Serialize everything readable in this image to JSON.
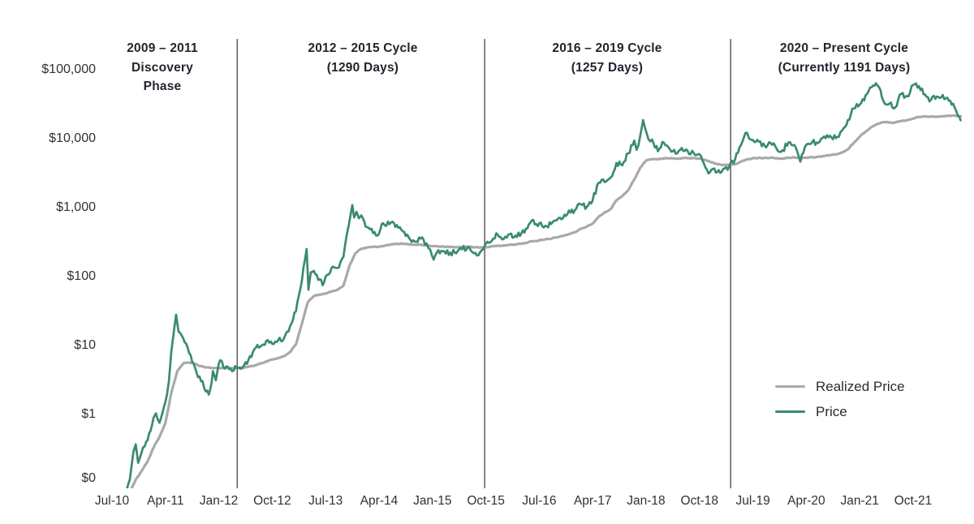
{
  "colors": {
    "price_green": "#3a8a74",
    "realized_gray": "#a9a9a9",
    "divider": "#55524a",
    "text_dark": "#24232e",
    "axis_text": "#31303b"
  },
  "legend": {
    "items": [
      "Realized Price",
      "Price"
    ]
  },
  "chart_data": {
    "type": "line",
    "yscale": "log",
    "grid": false,
    "legend_position": "right-middle",
    "x_unit": "months since Jul-2010",
    "x_ticks": [
      "Jul-10",
      "Apr-11",
      "Jan-12",
      "Oct-12",
      "Jul-13",
      "Apr-14",
      "Jan-15",
      "Oct-15",
      "Jul-16",
      "Apr-17",
      "Jan-18",
      "Oct-18",
      "Jul-19",
      "Apr-20",
      "Jan-21",
      "Oct-21"
    ],
    "y_ticks": [
      {
        "label": "$100,000",
        "value": 100000
      },
      {
        "label": "$10,000",
        "value": 10000
      },
      {
        "label": "$1,000",
        "value": 1000
      },
      {
        "label": "$100",
        "value": 100
      },
      {
        "label": "$10",
        "value": 10
      },
      {
        "label": "$1",
        "value": 1
      },
      {
        "label": "$0",
        "value": 0
      }
    ],
    "cycles": [
      {
        "lines": [
          "2009 – 2011",
          "Discovery",
          "Phase"
        ],
        "divider_month": 21.1
      },
      {
        "lines": [
          "2012 – 2015 Cycle",
          "(1290 Days)"
        ],
        "divider_month": 62.8
      },
      {
        "lines": [
          "2016 – 2019 Cycle",
          "(1257 Days)"
        ],
        "divider_month": 104.25
      },
      {
        "lines": [
          "2020 – Present Cycle",
          "(Currently 1191 Days)"
        ]
      }
    ],
    "series": [
      {
        "name": "Realized Price",
        "color": "#a9a9a9",
        "points": [
          [
            0.5,
            0.04
          ],
          [
            2,
            0.05
          ],
          [
            3,
            0.08
          ],
          [
            4,
            0.12
          ],
          [
            5,
            0.16
          ],
          [
            6,
            0.22
          ],
          [
            7,
            0.35
          ],
          [
            8,
            0.5
          ],
          [
            9,
            0.8
          ],
          [
            10,
            2.2
          ],
          [
            11,
            4.5
          ],
          [
            12,
            5.8
          ],
          [
            13,
            6.0
          ],
          [
            14,
            5.7
          ],
          [
            15,
            5.3
          ],
          [
            16,
            5.1
          ],
          [
            17,
            5.0
          ],
          [
            18,
            5.0
          ],
          [
            20,
            4.95
          ],
          [
            22,
            5.0
          ],
          [
            24,
            5.4
          ],
          [
            26,
            6.2
          ],
          [
            28,
            7.0
          ],
          [
            29,
            7.4
          ],
          [
            30,
            8.5
          ],
          [
            31,
            11
          ],
          [
            32,
            22
          ],
          [
            33,
            45
          ],
          [
            34,
            55
          ],
          [
            35,
            58
          ],
          [
            36,
            60
          ],
          [
            37,
            64
          ],
          [
            38,
            68
          ],
          [
            39,
            78
          ],
          [
            40,
            150
          ],
          [
            41,
            230
          ],
          [
            42,
            268
          ],
          [
            43,
            280
          ],
          [
            44,
            285
          ],
          [
            45,
            287
          ],
          [
            46,
            297
          ],
          [
            47,
            310
          ],
          [
            48,
            315
          ],
          [
            49,
            315
          ],
          [
            50,
            311
          ],
          [
            51,
            307
          ],
          [
            52,
            305
          ],
          [
            53,
            300
          ],
          [
            54,
            291
          ],
          [
            56,
            286
          ],
          [
            58,
            282
          ],
          [
            60,
            285
          ],
          [
            62,
            278
          ],
          [
            63,
            280
          ],
          [
            65,
            295
          ],
          [
            67,
            305
          ],
          [
            69,
            315
          ],
          [
            71,
            345
          ],
          [
            73,
            365
          ],
          [
            75,
            390
          ],
          [
            77,
            435
          ],
          [
            78,
            465
          ],
          [
            79,
            520
          ],
          [
            80,
            560
          ],
          [
            81,
            620
          ],
          [
            82,
            780
          ],
          [
            83,
            900
          ],
          [
            84,
            1000
          ],
          [
            85,
            1350
          ],
          [
            86,
            1550
          ],
          [
            87,
            1900
          ],
          [
            88,
            2700
          ],
          [
            89,
            4000
          ],
          [
            90,
            5100
          ],
          [
            91,
            5350
          ],
          [
            92,
            5300
          ],
          [
            93,
            5450
          ],
          [
            94,
            5500
          ],
          [
            95,
            5450
          ],
          [
            96,
            5500
          ],
          [
            97,
            5500
          ],
          [
            98,
            5500
          ],
          [
            99,
            5450
          ],
          [
            100,
            5200
          ],
          [
            101,
            4800
          ],
          [
            102,
            4500
          ],
          [
            103,
            4400
          ],
          [
            104,
            4400
          ],
          [
            105,
            4500
          ],
          [
            106,
            4900
          ],
          [
            107,
            5300
          ],
          [
            108,
            5500
          ],
          [
            109,
            5600
          ],
          [
            110,
            5550
          ],
          [
            111,
            5600
          ],
          [
            112,
            5500
          ],
          [
            113,
            5450
          ],
          [
            114,
            5550
          ],
          [
            115,
            5650
          ],
          [
            116,
            5500
          ],
          [
            117,
            5550
          ],
          [
            118,
            5700
          ],
          [
            119,
            5750
          ],
          [
            120,
            5900
          ],
          [
            121,
            6100
          ],
          [
            122,
            6250
          ],
          [
            123,
            6600
          ],
          [
            124,
            7400
          ],
          [
            125,
            9200
          ],
          [
            126,
            11300
          ],
          [
            127,
            13300
          ],
          [
            128,
            15600
          ],
          [
            129,
            17300
          ],
          [
            130,
            18300
          ],
          [
            131,
            18100
          ],
          [
            132,
            18200
          ],
          [
            133,
            19000
          ],
          [
            134,
            19600
          ],
          [
            135,
            20800
          ],
          [
            136,
            21800
          ],
          [
            137,
            22300
          ],
          [
            138,
            22200
          ],
          [
            139,
            22100
          ],
          [
            140,
            22400
          ],
          [
            141,
            22800
          ],
          [
            142,
            22800
          ],
          [
            143,
            22300
          ]
        ]
      },
      {
        "name": "Price",
        "color": "#3a8a74",
        "points": [
          [
            0,
            0.06
          ],
          [
            1,
            0.065
          ],
          [
            2,
            0.062
          ],
          [
            3,
            0.12
          ],
          [
            3.6,
            0.3
          ],
          [
            4,
            0.39
          ],
          [
            4.4,
            0.21
          ],
          [
            5,
            0.3
          ],
          [
            6,
            0.45
          ],
          [
            7,
            0.95
          ],
          [
            7.4,
            1.1
          ],
          [
            8,
            0.8
          ],
          [
            9,
            1.6
          ],
          [
            9.6,
            3.3
          ],
          [
            10,
            8.7
          ],
          [
            10.8,
            29.6
          ],
          [
            11.2,
            17
          ],
          [
            11.6,
            15.5
          ],
          [
            12,
            13.5
          ],
          [
            13,
            8.2
          ],
          [
            14,
            5
          ],
          [
            15,
            3.2
          ],
          [
            16.3,
            2.05
          ],
          [
            16.8,
            3.1
          ],
          [
            17,
            4.5
          ],
          [
            17.5,
            3.3
          ],
          [
            18,
            5.8
          ],
          [
            18.5,
            6.3
          ],
          [
            19,
            4.9
          ],
          [
            20,
            4.9
          ],
          [
            21,
            5
          ],
          [
            22,
            5.1
          ],
          [
            23,
            6.6
          ],
          [
            24,
            9.4
          ],
          [
            25,
            10.2
          ],
          [
            26,
            12.4
          ],
          [
            27,
            11.2
          ],
          [
            28,
            12.6
          ],
          [
            29,
            13.5
          ],
          [
            30,
            20
          ],
          [
            31,
            33
          ],
          [
            32,
            93
          ],
          [
            32.8,
            266
          ],
          [
            33.1,
            68
          ],
          [
            33.5,
            122
          ],
          [
            34,
            128
          ],
          [
            35,
            97
          ],
          [
            35.5,
            79
          ],
          [
            36,
            106
          ],
          [
            37,
            141
          ],
          [
            38,
            141
          ],
          [
            39,
            204
          ],
          [
            40.5,
            1150
          ],
          [
            40.8,
            760
          ],
          [
            41.2,
            920
          ],
          [
            41.6,
            740
          ],
          [
            42,
            815
          ],
          [
            43,
            550
          ],
          [
            44,
            450
          ],
          [
            45,
            445
          ],
          [
            45.7,
            628
          ],
          [
            46,
            580
          ],
          [
            47,
            640
          ],
          [
            48,
            590
          ],
          [
            49,
            480
          ],
          [
            50,
            390
          ],
          [
            51,
            340
          ],
          [
            52,
            375
          ],
          [
            53,
            320
          ],
          [
            54.2,
            186
          ],
          [
            55,
            255
          ],
          [
            56,
            245
          ],
          [
            57,
            235
          ],
          [
            58,
            230
          ],
          [
            59,
            263
          ],
          [
            60,
            285
          ],
          [
            61,
            230
          ],
          [
            62,
            236
          ],
          [
            63,
            315
          ],
          [
            64,
            350
          ],
          [
            65,
            430
          ],
          [
            66,
            370
          ],
          [
            67,
            437
          ],
          [
            68,
            416
          ],
          [
            69,
            448
          ],
          [
            70,
            530
          ],
          [
            71,
            700
          ],
          [
            71.5,
            610
          ],
          [
            72,
            625
          ],
          [
            73,
            575
          ],
          [
            74,
            610
          ],
          [
            75,
            700
          ],
          [
            76,
            745
          ],
          [
            77,
            960
          ],
          [
            78,
            970
          ],
          [
            79,
            1180
          ],
          [
            80,
            1080
          ],
          [
            81,
            1350
          ],
          [
            82,
            2420
          ],
          [
            83,
            2480
          ],
          [
            84,
            2875
          ],
          [
            85,
            4700
          ],
          [
            86,
            4340
          ],
          [
            87,
            6470
          ],
          [
            88,
            9900
          ],
          [
            88.4,
            7300
          ],
          [
            89,
            11500
          ],
          [
            89.5,
            19700
          ],
          [
            90,
            13500
          ],
          [
            90.4,
            10400
          ],
          [
            91,
            10300
          ],
          [
            92,
            6930
          ],
          [
            93,
            9240
          ],
          [
            94,
            7490
          ],
          [
            95,
            6400
          ],
          [
            96,
            7750
          ],
          [
            97,
            7020
          ],
          [
            98,
            6630
          ],
          [
            99,
            6300
          ],
          [
            100,
            4020
          ],
          [
            100.5,
            3300
          ],
          [
            101,
            3740
          ],
          [
            102,
            3460
          ],
          [
            103,
            3850
          ],
          [
            104,
            4100
          ],
          [
            105,
            5320
          ],
          [
            106,
            8560
          ],
          [
            107,
            12900
          ],
          [
            107.4,
            10500
          ],
          [
            108,
            10100
          ],
          [
            109,
            9600
          ],
          [
            110,
            8300
          ],
          [
            111,
            9150
          ],
          [
            112,
            7550
          ],
          [
            113,
            7190
          ],
          [
            114,
            9350
          ],
          [
            115,
            8550
          ],
          [
            116,
            4900
          ],
          [
            117,
            8630
          ],
          [
            118,
            9450
          ],
          [
            119,
            9140
          ],
          [
            120,
            11350
          ],
          [
            121,
            11650
          ],
          [
            122,
            10780
          ],
          [
            123,
            13800
          ],
          [
            124,
            19700
          ],
          [
            125,
            29000
          ],
          [
            126,
            33100
          ],
          [
            127,
            45100
          ],
          [
            128,
            58800
          ],
          [
            129,
            62500
          ],
          [
            129.5,
            53500
          ],
          [
            130,
            37300
          ],
          [
            131,
            34000
          ],
          [
            132,
            30200
          ],
          [
            132.5,
            39500
          ],
          [
            133,
            47100
          ],
          [
            134,
            43800
          ],
          [
            135,
            63500
          ],
          [
            135.5,
            66900
          ],
          [
            136,
            61000
          ],
          [
            136.5,
            56500
          ],
          [
            137,
            46200
          ],
          [
            138,
            38500
          ],
          [
            139,
            43200
          ],
          [
            140,
            45500
          ],
          [
            141,
            37700
          ],
          [
            142,
            30000
          ],
          [
            143,
            19500
          ]
        ]
      }
    ]
  }
}
